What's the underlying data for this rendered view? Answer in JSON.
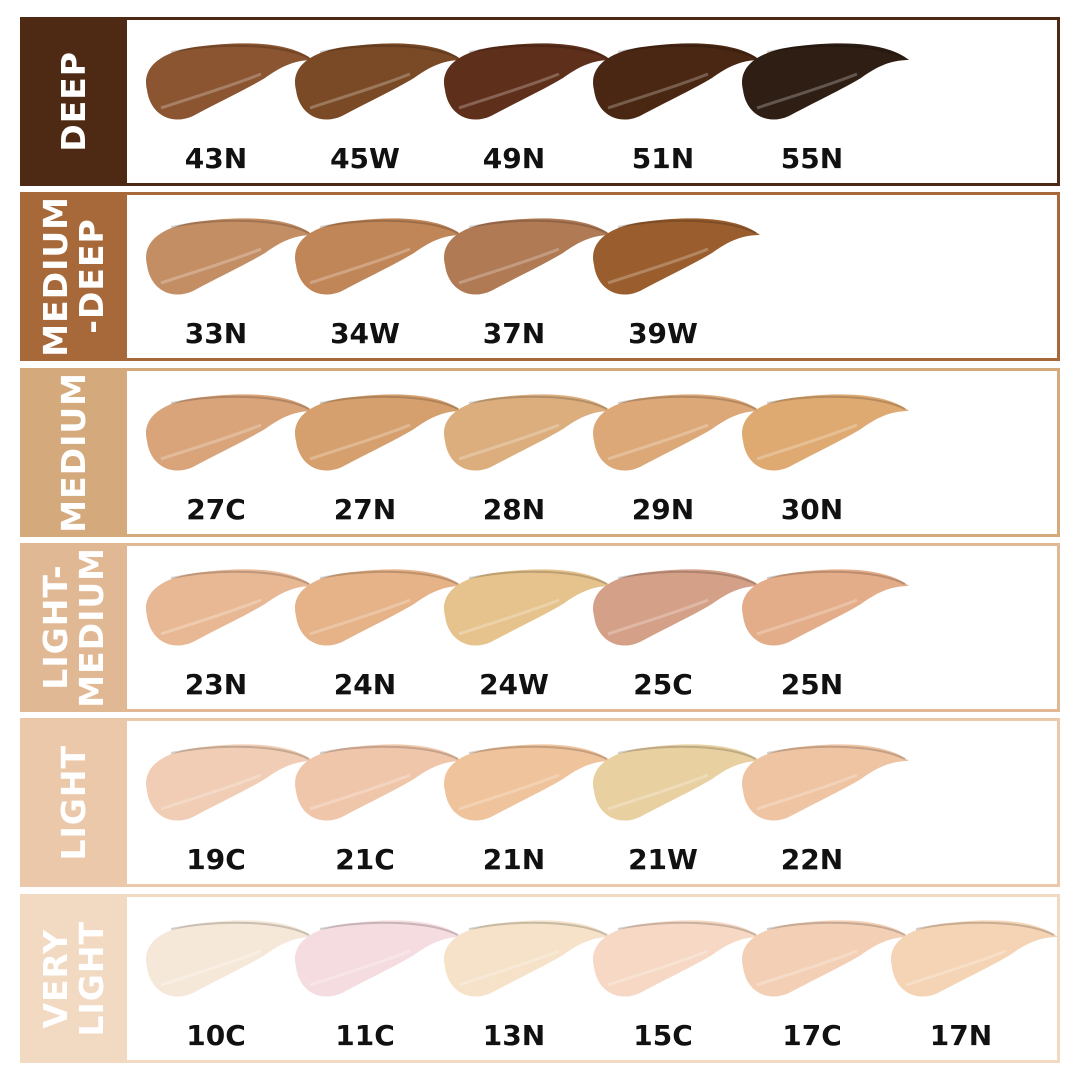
{
  "rows": [
    {
      "label": "DEEP",
      "color": "#4e2a15",
      "shades": [
        {
          "code": "43N",
          "color": "#8a5530"
        },
        {
          "code": "45W",
          "color": "#7a4a26"
        },
        {
          "code": "49N",
          "color": "#5e2f1a"
        },
        {
          "code": "51N",
          "color": "#4a2712"
        },
        {
          "code": "55N",
          "color": "#2e1e14"
        }
      ]
    },
    {
      "label": "MEDIUM\n-DEEP",
      "color": "#a8693a",
      "shades": [
        {
          "code": "33N",
          "color": "#c48e64"
        },
        {
          "code": "34W",
          "color": "#c08658"
        },
        {
          "code": "37N",
          "color": "#b07a55"
        },
        {
          "code": "39W",
          "color": "#9a5e2e"
        }
      ]
    },
    {
      "label": "MEDIUM",
      "color": "#d4aa7d",
      "shades": [
        {
          "code": "27C",
          "color": "#d9a47a"
        },
        {
          "code": "27N",
          "color": "#d6a06e"
        },
        {
          "code": "28N",
          "color": "#dcae7e"
        },
        {
          "code": "29N",
          "color": "#dca878"
        },
        {
          "code": "30N",
          "color": "#deaa72"
        }
      ]
    },
    {
      "label": "LIGHT-\nMEDIUM",
      "color": "#e0b894",
      "shades": [
        {
          "code": "23N",
          "color": "#e8b895"
        },
        {
          "code": "24N",
          "color": "#e6b287"
        },
        {
          "code": "24W",
          "color": "#e6c38c"
        },
        {
          "code": "25C",
          "color": "#d4a088"
        },
        {
          "code": "25N",
          "color": "#e4ad89"
        }
      ]
    },
    {
      "label": "LIGHT",
      "color": "#ecc8ab",
      "shades": [
        {
          "code": "19C",
          "color": "#f0cdb4"
        },
        {
          "code": "21C",
          "color": "#f0c6ab"
        },
        {
          "code": "21N",
          "color": "#efc39b"
        },
        {
          "code": "21W",
          "color": "#e8d0a0"
        },
        {
          "code": "22N",
          "color": "#eec4a3"
        }
      ]
    },
    {
      "label": "VERY\nLIGHT",
      "color": "#f2d9c2",
      "shades": [
        {
          "code": "10C",
          "color": "#f6e8d8"
        },
        {
          "code": "11C",
          "color": "#f5dce0"
        },
        {
          "code": "13N",
          "color": "#f5e2c8"
        },
        {
          "code": "15C",
          "color": "#f6d8c4"
        },
        {
          "code": "17C",
          "color": "#f3cfb5"
        },
        {
          "code": "17N",
          "color": "#f4d4b4"
        }
      ]
    }
  ]
}
